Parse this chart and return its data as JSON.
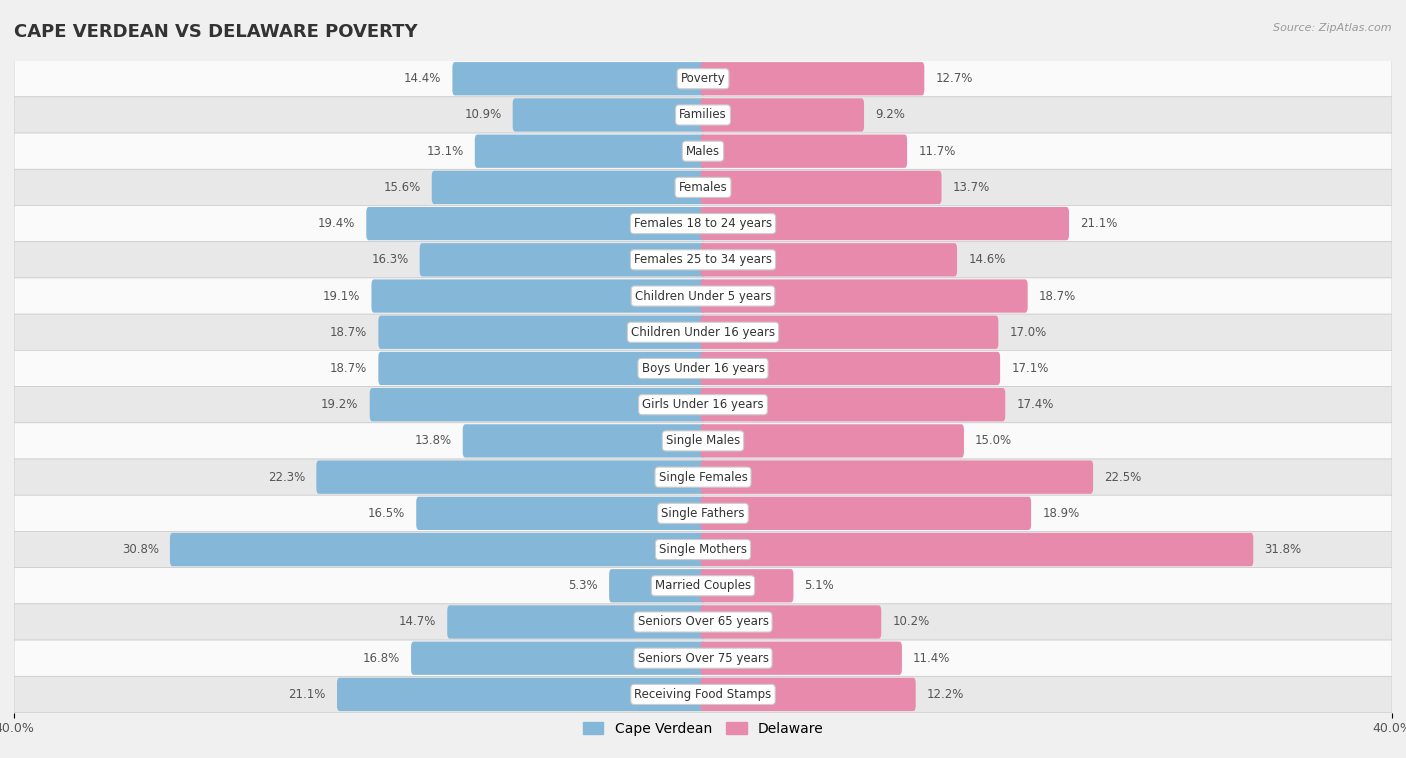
{
  "title": "CAPE VERDEAN VS DELAWARE POVERTY",
  "source": "Source: ZipAtlas.com",
  "categories": [
    "Poverty",
    "Families",
    "Males",
    "Females",
    "Females 18 to 24 years",
    "Females 25 to 34 years",
    "Children Under 5 years",
    "Children Under 16 years",
    "Boys Under 16 years",
    "Girls Under 16 years",
    "Single Males",
    "Single Females",
    "Single Fathers",
    "Single Mothers",
    "Married Couples",
    "Seniors Over 65 years",
    "Seniors Over 75 years",
    "Receiving Food Stamps"
  ],
  "cape_verdean": [
    14.4,
    10.9,
    13.1,
    15.6,
    19.4,
    16.3,
    19.1,
    18.7,
    18.7,
    19.2,
    13.8,
    22.3,
    16.5,
    30.8,
    5.3,
    14.7,
    16.8,
    21.1
  ],
  "delaware": [
    12.7,
    9.2,
    11.7,
    13.7,
    21.1,
    14.6,
    18.7,
    17.0,
    17.1,
    17.4,
    15.0,
    22.5,
    18.9,
    31.8,
    5.1,
    10.2,
    11.4,
    12.2
  ],
  "cv_color": "#85b8d8",
  "de_color": "#e88aab",
  "bg_color": "#f0f0f0",
  "row_color_light": "#fafafa",
  "row_color_dark": "#e8e8e8",
  "axis_limit": 40.0,
  "bar_height": 0.62,
  "title_fontsize": 13,
  "label_fontsize": 8.5,
  "value_fontsize": 8.5,
  "legend_fontsize": 10,
  "x_only_left_right": true
}
